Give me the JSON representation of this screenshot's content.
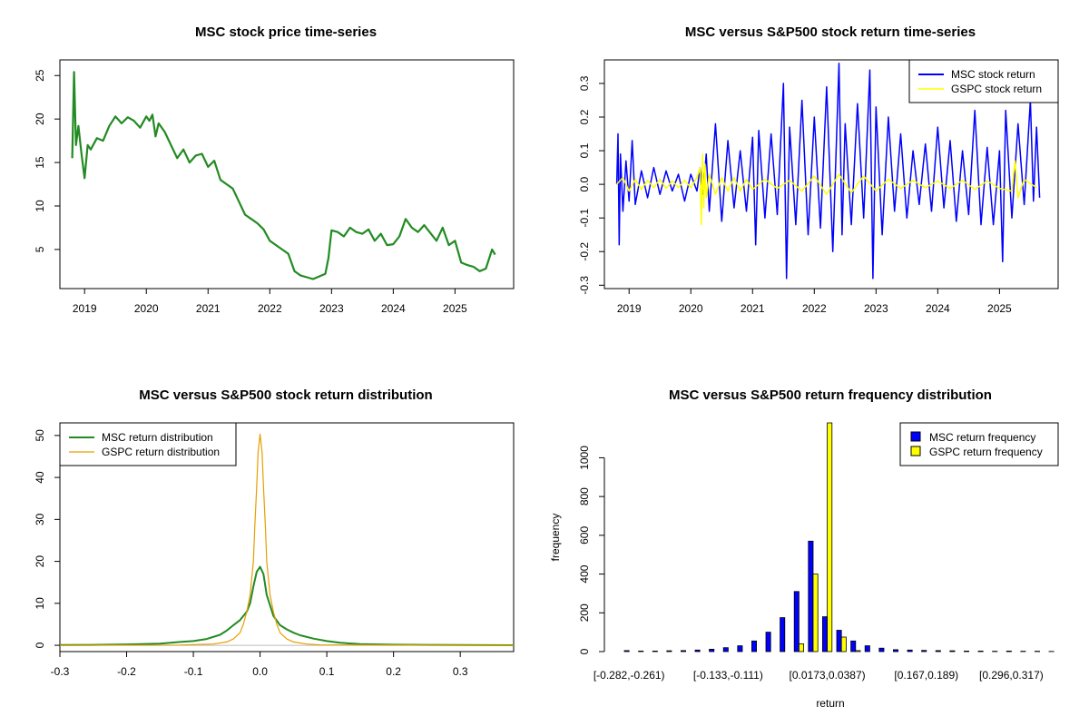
{
  "charts": [
    {
      "id": "price",
      "type": "line",
      "title": "MSC stock price time-series",
      "xlabel": "",
      "ylabel": "",
      "xlim": [
        2018.6,
        2025.95
      ],
      "ylim": [
        0.5,
        26.8
      ],
      "xticks": [
        2019,
        2020,
        2021,
        2022,
        2023,
        2024,
        2025
      ],
      "xtick_labels": [
        "2019",
        "2020",
        "2021",
        "2022",
        "2023",
        "2024",
        "2025"
      ],
      "yticks": [
        5,
        10,
        15,
        20,
        25
      ],
      "ytick_labels": [
        "5",
        "10",
        "15",
        "20",
        "25"
      ],
      "series": [
        {
          "name": "MSC stock price",
          "color": "#228B22",
          "x": [
            2018.8,
            2018.83,
            2018.86,
            2018.9,
            2018.95,
            2019.0,
            2019.05,
            2019.1,
            2019.2,
            2019.3,
            2019.4,
            2019.5,
            2019.6,
            2019.7,
            2019.8,
            2019.9,
            2020.0,
            2020.05,
            2020.1,
            2020.15,
            2020.2,
            2020.3,
            2020.4,
            2020.5,
            2020.6,
            2020.7,
            2020.8,
            2020.9,
            2021.0,
            2021.1,
            2021.2,
            2021.3,
            2021.4,
            2021.5,
            2021.6,
            2021.7,
            2021.8,
            2021.9,
            2022.0,
            2022.1,
            2022.2,
            2022.3,
            2022.4,
            2022.5,
            2022.6,
            2022.7,
            2022.8,
            2022.9,
            2022.95,
            2023.0,
            2023.1,
            2023.2,
            2023.3,
            2023.4,
            2023.5,
            2023.6,
            2023.7,
            2023.8,
            2023.9,
            2024.0,
            2024.1,
            2024.2,
            2024.3,
            2024.4,
            2024.5,
            2024.6,
            2024.7,
            2024.8,
            2024.9,
            2025.0,
            2025.1,
            2025.2,
            2025.3,
            2025.4,
            2025.5,
            2025.6,
            2025.65
          ],
          "y": [
            15.5,
            25.4,
            17.0,
            19.2,
            16.0,
            13.2,
            17.0,
            16.5,
            17.8,
            17.5,
            19.2,
            20.3,
            19.5,
            20.2,
            19.8,
            19.0,
            20.3,
            19.8,
            20.5,
            18.0,
            19.5,
            18.5,
            17.0,
            15.5,
            16.5,
            15.0,
            15.8,
            16.0,
            14.5,
            15.2,
            13.0,
            12.5,
            12.0,
            10.5,
            9.0,
            8.5,
            8.0,
            7.3,
            6.0,
            5.5,
            5.0,
            4.5,
            2.5,
            2.0,
            1.8,
            1.6,
            1.9,
            2.2,
            4.0,
            7.2,
            7.0,
            6.5,
            7.5,
            7.0,
            6.8,
            7.3,
            6.0,
            6.8,
            5.5,
            5.6,
            6.5,
            8.5,
            7.5,
            7.0,
            7.8,
            6.9,
            6.0,
            7.5,
            5.5,
            6.0,
            3.5,
            3.2,
            3.0,
            2.5,
            2.8,
            5.0,
            4.4
          ]
        }
      ]
    },
    {
      "id": "returns",
      "type": "line",
      "title": "MSC versus S&P500 stock return time-series",
      "xlim": [
        2018.6,
        2025.95
      ],
      "ylim": [
        -0.31,
        0.37
      ],
      "xticks": [
        2019,
        2020,
        2021,
        2022,
        2023,
        2024,
        2025
      ],
      "xtick_labels": [
        "2019",
        "2020",
        "2021",
        "2022",
        "2023",
        "2024",
        "2025"
      ],
      "yticks": [
        -0.3,
        -0.2,
        -0.1,
        0.0,
        0.1,
        0.2,
        0.3
      ],
      "ytick_labels": [
        "-0.3",
        "-0.2",
        "-0.1",
        "0.0",
        "0.1",
        "0.2",
        "0.3"
      ],
      "legend_position": "top-right",
      "legend": [
        "MSC stock return",
        "GSPC stock return"
      ],
      "series": [
        {
          "name": "MSC stock return",
          "color": "#0000FF",
          "x": [
            2018.8,
            2018.82,
            2018.84,
            2018.86,
            2018.9,
            2018.95,
            2019.0,
            2019.05,
            2019.1,
            2019.2,
            2019.3,
            2019.4,
            2019.5,
            2019.6,
            2019.7,
            2019.8,
            2019.9,
            2020.0,
            2020.1,
            2020.15,
            2020.2,
            2020.25,
            2020.3,
            2020.4,
            2020.5,
            2020.6,
            2020.7,
            2020.8,
            2020.9,
            2021.0,
            2021.05,
            2021.1,
            2021.2,
            2021.3,
            2021.4,
            2021.5,
            2021.55,
            2021.6,
            2021.7,
            2021.8,
            2021.9,
            2022.0,
            2022.1,
            2022.2,
            2022.3,
            2022.4,
            2022.45,
            2022.5,
            2022.6,
            2022.7,
            2022.8,
            2022.9,
            2022.95,
            2023.0,
            2023.1,
            2023.2,
            2023.3,
            2023.4,
            2023.5,
            2023.6,
            2023.7,
            2023.8,
            2023.9,
            2024.0,
            2024.1,
            2024.2,
            2024.3,
            2024.4,
            2024.5,
            2024.6,
            2024.7,
            2024.8,
            2024.9,
            2025.0,
            2025.05,
            2025.1,
            2025.2,
            2025.3,
            2025.4,
            2025.5,
            2025.55,
            2025.6,
            2025.65
          ],
          "y": [
            0.0,
            0.15,
            -0.18,
            0.09,
            -0.08,
            0.07,
            -0.05,
            0.13,
            -0.06,
            0.04,
            -0.04,
            0.05,
            -0.03,
            0.04,
            -0.02,
            0.03,
            -0.05,
            0.03,
            -0.02,
            0.05,
            -0.03,
            0.09,
            -0.08,
            0.18,
            -0.11,
            0.13,
            -0.07,
            0.1,
            -0.08,
            0.14,
            -0.18,
            0.16,
            -0.1,
            0.15,
            -0.09,
            0.3,
            -0.28,
            0.17,
            -0.12,
            0.25,
            -0.15,
            0.2,
            -0.13,
            0.29,
            -0.2,
            0.36,
            -0.15,
            0.18,
            -0.12,
            0.24,
            -0.1,
            0.34,
            -0.28,
            0.23,
            -0.15,
            0.2,
            -0.08,
            0.15,
            -0.1,
            0.1,
            -0.06,
            0.12,
            -0.08,
            0.17,
            -0.07,
            0.13,
            -0.11,
            0.1,
            -0.09,
            0.22,
            -0.12,
            0.11,
            -0.12,
            0.1,
            -0.23,
            0.22,
            -0.1,
            0.18,
            -0.06,
            0.25,
            -0.05,
            0.17,
            -0.04
          ]
        },
        {
          "name": "GSPC stock return",
          "color": "#FFFF00",
          "x": [
            2018.8,
            2018.9,
            2019.0,
            2019.1,
            2019.2,
            2019.3,
            2019.4,
            2019.5,
            2019.6,
            2019.7,
            2019.8,
            2019.9,
            2020.0,
            2020.1,
            2020.15,
            2020.17,
            2020.19,
            2020.21,
            2020.23,
            2020.25,
            2020.3,
            2020.4,
            2020.5,
            2020.6,
            2020.7,
            2020.8,
            2020.9,
            2021.0,
            2021.2,
            2021.4,
            2021.6,
            2021.8,
            2022.0,
            2022.2,
            2022.4,
            2022.6,
            2022.8,
            2023.0,
            2023.2,
            2023.4,
            2023.6,
            2023.8,
            2024.0,
            2024.2,
            2024.4,
            2024.6,
            2024.8,
            2025.0,
            2025.2,
            2025.25,
            2025.3,
            2025.4,
            2025.6
          ],
          "y": [
            0.0,
            0.02,
            -0.02,
            0.015,
            -0.015,
            0.012,
            -0.01,
            0.015,
            -0.012,
            0.01,
            -0.01,
            0.012,
            -0.01,
            0.02,
            0.05,
            -0.12,
            0.09,
            -0.07,
            0.06,
            -0.04,
            0.03,
            -0.03,
            0.02,
            -0.02,
            0.02,
            -0.02,
            0.015,
            -0.015,
            0.015,
            -0.012,
            0.012,
            -0.02,
            0.025,
            -0.03,
            0.03,
            -0.025,
            0.025,
            -0.02,
            0.015,
            -0.012,
            0.012,
            -0.01,
            0.01,
            -0.012,
            0.012,
            -0.015,
            0.01,
            -0.012,
            -0.02,
            0.07,
            -0.04,
            0.015,
            -0.01
          ]
        }
      ]
    },
    {
      "id": "density",
      "type": "line",
      "title": "MSC versus S&P500 stock return distribution",
      "xlim": [
        -0.3,
        0.38
      ],
      "ylim": [
        -1.5,
        53
      ],
      "xticks": [
        -0.3,
        -0.2,
        -0.1,
        0.0,
        0.1,
        0.2,
        0.3
      ],
      "xtick_labels": [
        "-0.3",
        "-0.2",
        "-0.1",
        "0.0",
        "0.1",
        "0.2",
        "0.3"
      ],
      "yticks": [
        0,
        10,
        20,
        30,
        40,
        50
      ],
      "ytick_labels": [
        "0",
        "10",
        "20",
        "30",
        "40",
        "50"
      ],
      "legend_position": "top-left",
      "legend": [
        "MSC return distribution",
        "GSPC return distribution"
      ],
      "baseline": 0,
      "series": [
        {
          "name": "MSC return distribution",
          "color": "#228B22",
          "x": [
            -0.3,
            -0.25,
            -0.2,
            -0.15,
            -0.12,
            -0.1,
            -0.08,
            -0.06,
            -0.05,
            -0.04,
            -0.03,
            -0.02,
            -0.015,
            -0.01,
            -0.005,
            0.0,
            0.005,
            0.01,
            0.02,
            0.03,
            0.04,
            0.05,
            0.06,
            0.08,
            0.1,
            0.12,
            0.15,
            0.2,
            0.25,
            0.3,
            0.38
          ],
          "y": [
            0.05,
            0.1,
            0.2,
            0.4,
            0.8,
            1.0,
            1.5,
            2.5,
            3.5,
            4.8,
            6.0,
            8.0,
            10.0,
            14.0,
            17.5,
            18.7,
            17.0,
            12.0,
            7.0,
            4.8,
            3.8,
            3.0,
            2.4,
            1.6,
            1.0,
            0.6,
            0.3,
            0.15,
            0.1,
            0.05,
            0.02
          ]
        },
        {
          "name": "GSPC return distribution",
          "color": "#E69F00",
          "x": [
            -0.3,
            -0.12,
            -0.09,
            -0.07,
            -0.05,
            -0.04,
            -0.03,
            -0.025,
            -0.02,
            -0.015,
            -0.01,
            -0.008,
            -0.005,
            -0.003,
            0.0,
            0.003,
            0.005,
            0.008,
            0.01,
            0.015,
            0.02,
            0.025,
            0.03,
            0.04,
            0.05,
            0.07,
            0.09,
            0.38
          ],
          "y": [
            0.0,
            0.05,
            0.2,
            0.3,
            0.8,
            1.5,
            3.0,
            5.0,
            8.0,
            12.0,
            20.0,
            28.0,
            38.0,
            46.0,
            50.3,
            46.0,
            38.0,
            28.0,
            20.0,
            12.0,
            8.0,
            5.0,
            3.0,
            1.5,
            0.8,
            0.3,
            0.1,
            0.0
          ]
        }
      ]
    },
    {
      "id": "hist",
      "type": "bar",
      "title": "MSC versus S&P500 return frequency distribution",
      "xlabel": "return",
      "ylabel": "frequency",
      "ylim": [
        0,
        1180
      ],
      "yticks": [
        0,
        200,
        400,
        600,
        800,
        1000
      ],
      "ytick_labels": [
        "0",
        "200",
        "400",
        "600",
        "800",
        "1000"
      ],
      "legend_position": "top-right",
      "legend": [
        "MSC return frequency",
        "GSPC return frequency"
      ],
      "categories": [
        "[-0.282,-0.261)",
        "c2",
        "c3",
        "c4",
        "c5",
        "c6",
        "c7",
        "[-0.133,-0.111)",
        "c9",
        "c10",
        "c11",
        "c12",
        "c13",
        "c14",
        "[0.0173,0.0387)",
        "c16",
        "c17",
        "c18",
        "c19",
        "c20",
        "c21",
        "[0.167,0.189)",
        "c23",
        "c24",
        "c25",
        "c26",
        "c27",
        "[0.296,0.317)",
        "c29",
        "c30",
        "c31"
      ],
      "shown_category_labels": [
        "[-0.282,-0.261)",
        "[-0.133,-0.111)",
        "[0.0173,0.0387)",
        "[0.167,0.189)",
        "[0.296,0.317)"
      ],
      "series": [
        {
          "name": "MSC return frequency",
          "color": "#0000FF",
          "values": [
            5,
            3,
            3,
            4,
            5,
            8,
            12,
            20,
            30,
            55,
            100,
            175,
            310,
            570,
            180,
            110,
            55,
            30,
            18,
            10,
            8,
            6,
            5,
            4,
            3,
            3,
            2,
            3,
            2,
            2,
            1
          ]
        },
        {
          "name": "GSPC return frequency",
          "color": "#FFFF00",
          "values": [
            0,
            0,
            0,
            0,
            0,
            0,
            0,
            0,
            0,
            0,
            0,
            0,
            40,
            400,
            1200,
            75,
            5,
            0,
            0,
            0,
            0,
            0,
            0,
            0,
            0,
            0,
            0,
            0,
            0,
            0,
            0
          ]
        }
      ]
    }
  ]
}
